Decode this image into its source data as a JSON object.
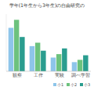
{
  "chart_data": {
    "type": "bar",
    "title": "学年(1年生から3年生)の自由研究の",
    "categories": [
      "観察",
      "工作",
      "実験",
      "調べ学習"
    ],
    "series": [
      {
        "name": "小1",
        "color": "#8ec5ea",
        "values": [
          38,
          22,
          12,
          8
        ]
      },
      {
        "name": "小2",
        "color": "#6dc27e",
        "values": [
          45,
          25,
          15,
          10
        ]
      },
      {
        "name": "小3",
        "color": "#2a9d8f",
        "values": [
          30,
          18,
          20,
          14
        ]
      }
    ],
    "ylim": [
      0,
      50
    ],
    "tick_labels": "x",
    "legend": "bottom-right"
  }
}
